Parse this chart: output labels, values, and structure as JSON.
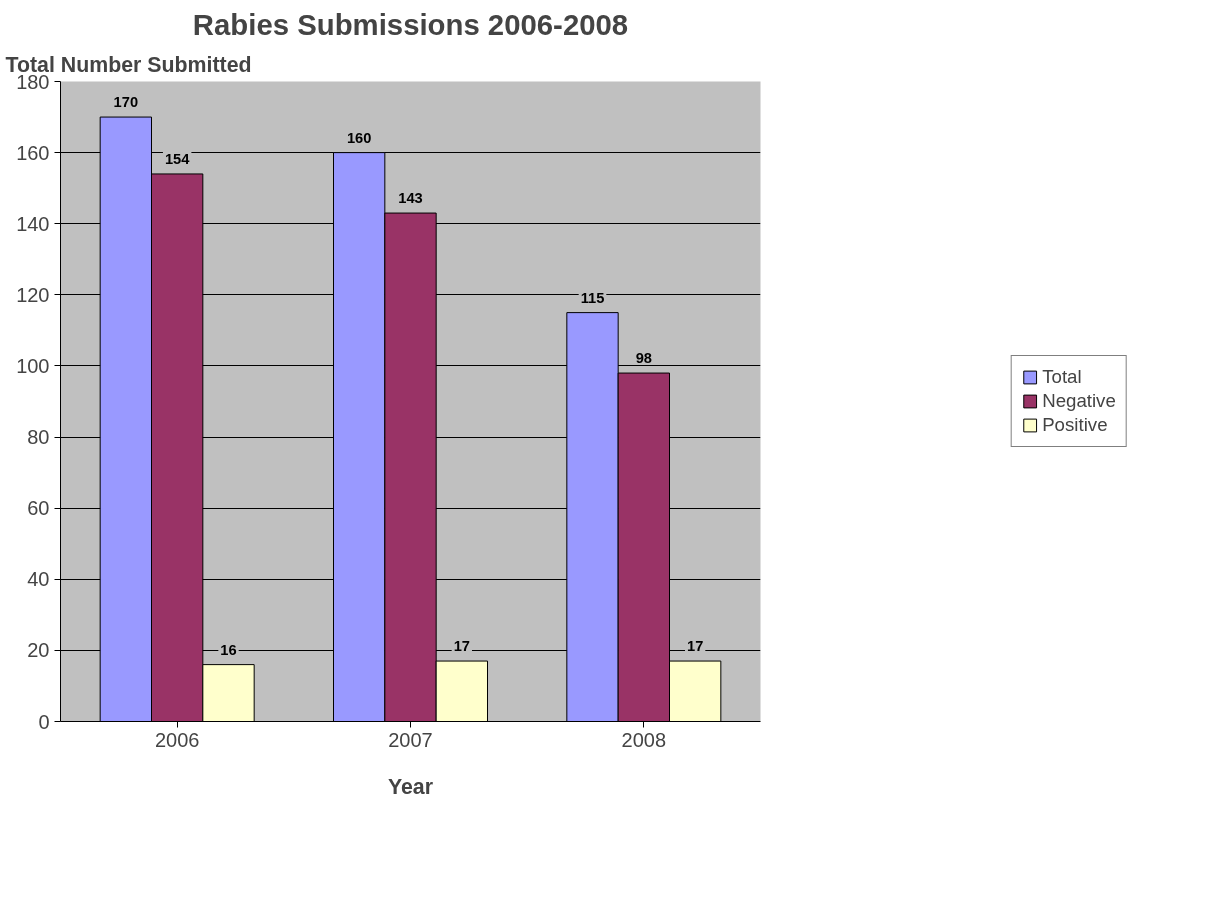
{
  "chart_data": {
    "type": "bar",
    "title": "Rabies Submissions 2006-2008",
    "xlabel": "Year",
    "ylabel": "Total Number Submitted",
    "categories": [
      "2006",
      "2007",
      "2008"
    ],
    "series": [
      {
        "name": "Total",
        "color": "#9999ff",
        "values": [
          170,
          160,
          115
        ]
      },
      {
        "name": "Negative",
        "color": "#993366",
        "values": [
          154,
          143,
          98
        ]
      },
      {
        "name": "Positive",
        "color": "#ffffcc",
        "values": [
          16,
          17,
          17
        ]
      }
    ],
    "ylim": [
      0,
      180
    ],
    "yticks": [
      0,
      20,
      40,
      60,
      80,
      100,
      120,
      140,
      160,
      180
    ],
    "grid": "y",
    "legend": "right",
    "data_labels": true
  }
}
